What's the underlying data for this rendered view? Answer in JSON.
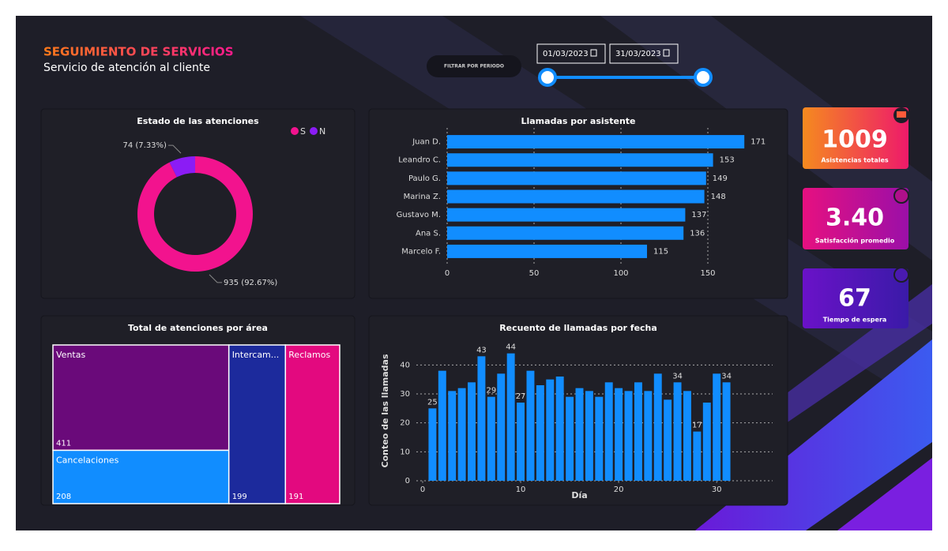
{
  "header": {
    "title": "SEGUIMIENTO DE SERVICIOS",
    "subtitle": "Servicio de atención al cliente"
  },
  "filter": {
    "label": "FILTRAR POR PERIODO",
    "start": "01/03/2023",
    "end": "31/03/2023"
  },
  "kpis": [
    {
      "value": "1009",
      "label": "Asistencias totales"
    },
    {
      "value": "3.40",
      "label": "Satisfacción promedio"
    },
    {
      "value": "67",
      "label": "Tiempo de espera"
    }
  ],
  "chart_data": [
    {
      "type": "donut",
      "title": "Estado de las atenciones",
      "categories": [
        "S",
        "N"
      ],
      "values": [
        935,
        74
      ],
      "value_labels": [
        "935 (92.67%)",
        "74 (7.33%)"
      ],
      "colors": [
        "#f2138e",
        "#8b1cf5"
      ],
      "legend": "top-right"
    },
    {
      "type": "bar",
      "orientation": "horizontal",
      "title": "Llamadas por asistente",
      "categories": [
        "Juan D.",
        "Leandro C.",
        "Paulo G.",
        "Marina Z.",
        "Gustavo M.",
        "Ana S.",
        "Marcelo F."
      ],
      "values": [
        171,
        153,
        149,
        148,
        137,
        136,
        115
      ],
      "color": "#118dff",
      "xlim": [
        0,
        175
      ],
      "xticks": [
        0,
        50,
        100,
        150
      ],
      "grid": true
    },
    {
      "type": "treemap",
      "title": "Total de atenciones por área",
      "categories": [
        "Ventas",
        "Cancelaciones",
        "Intercam...",
        "Reclamos"
      ],
      "values": [
        411,
        208,
        199,
        191
      ],
      "colors": [
        "#6a0a7a",
        "#118dff",
        "#1c2a9c",
        "#e3097f"
      ]
    },
    {
      "type": "bar",
      "orientation": "vertical",
      "title": "Recuento de llamadas por fecha",
      "x_label": "Día",
      "y_label": "Conteo de las llamadas",
      "x": [
        1,
        2,
        3,
        4,
        5,
        6,
        7,
        8,
        9,
        10,
        11,
        12,
        13,
        14,
        15,
        16,
        17,
        18,
        19,
        20,
        21,
        22,
        23,
        24,
        25,
        26,
        27,
        28,
        29,
        30,
        31
      ],
      "values": [
        25,
        38,
        31,
        32,
        34,
        43,
        29,
        37,
        44,
        27,
        38,
        33,
        35,
        36,
        29,
        32,
        31,
        29,
        34,
        32,
        31,
        34,
        31,
        37,
        28,
        34,
        31,
        17,
        27,
        37,
        34
      ],
      "value_labels": [
        "25",
        null,
        null,
        null,
        null,
        "43",
        "29",
        null,
        "44",
        "27",
        null,
        null,
        null,
        null,
        null,
        null,
        null,
        null,
        null,
        null,
        null,
        null,
        null,
        null,
        null,
        "34",
        null,
        "17",
        null,
        null,
        "34"
      ],
      "color": "#118dff",
      "xlim": [
        0,
        32
      ],
      "xticks": [
        0,
        10,
        20,
        30
      ],
      "ylim": [
        0,
        45
      ],
      "yticks": [
        0,
        10,
        20,
        30,
        40
      ],
      "grid": true
    }
  ]
}
